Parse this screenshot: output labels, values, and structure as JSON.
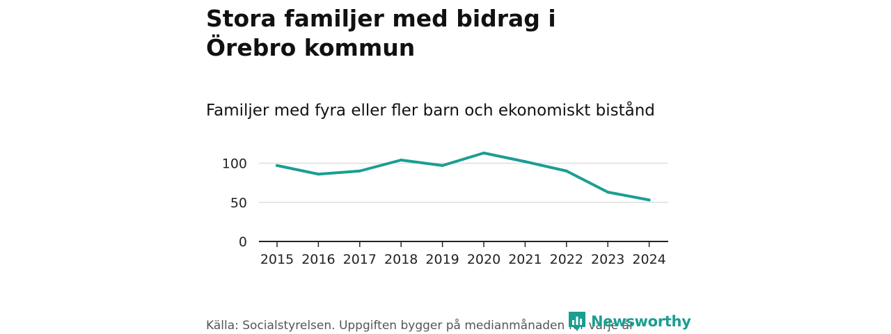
{
  "header": {
    "title": "Stora familjer med bidrag i Örebro kommun",
    "subtitle": "Familjer med fyra eller fler barn och ekonomiskt bistånd"
  },
  "footer": {
    "source": "Källa: Socialstyrelsen. Uppgiften bygger på medianmånaden för varje år",
    "brand": "Newsworthy",
    "brand_icon": "newsworthy-chart-icon"
  },
  "colors": {
    "line": "#1a9e92",
    "grid": "#d9d9d9",
    "axis": "#222222",
    "brand": "#1a9e92"
  },
  "chart_data": {
    "type": "line",
    "title": "Stora familjer med bidrag i Örebro kommun",
    "subtitle": "Familjer med fyra eller fler barn och ekonomiskt bistånd",
    "xlabel": "",
    "ylabel": "",
    "categories": [
      "2015",
      "2016",
      "2017",
      "2018",
      "2019",
      "2020",
      "2021",
      "2022",
      "2023",
      "2024"
    ],
    "series": [
      {
        "values": [
          97,
          86,
          90,
          104,
          97,
          113,
          102,
          90,
          63,
          53
        ]
      }
    ],
    "yticks": [
      0,
      50,
      100
    ],
    "ylim": [
      0,
      125
    ],
    "grid": true,
    "legend": "none"
  }
}
